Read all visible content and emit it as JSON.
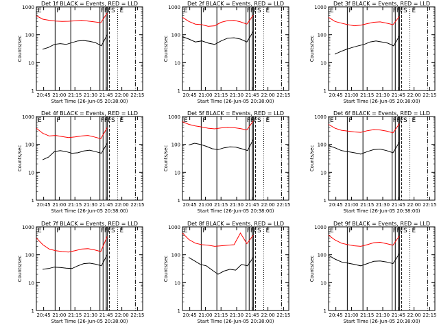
{
  "chart_data": {
    "type": "line",
    "layout": "3x3 grid",
    "colors": {
      "events": "#000000",
      "lld": "#ff0000",
      "frame": "#000000"
    },
    "shared": {
      "ylabel": "Counts/sec",
      "xlabel": "Start Time (26-Jun-05 20:38:00)",
      "yscale": "log",
      "ylim": [
        1,
        1000
      ],
      "yticks": [
        1,
        10,
        100,
        1000
      ],
      "xlim": [
        "20:38",
        "22:20"
      ],
      "xticks": [
        "20:45",
        "21:00",
        "21:15",
        "21:30",
        "21:45",
        "22:00",
        "22:15"
      ],
      "marker_labels": [
        "E",
        "F",
        "FFFS",
        "E"
      ],
      "marker_times": {
        "E_start": "20:38",
        "F_start": "20:56",
        "F_end": "21:11",
        "F2": "21:39",
        "F3": "21:42",
        "F4": "21:45",
        "S": "21:46",
        "dashed": "21:48",
        "dotted": "21:56",
        "E_end": "22:13"
      },
      "series_names": [
        "Events",
        "LLD"
      ]
    },
    "panels": [
      {
        "title": "Det 1f BLACK = Events, RED = LLD",
        "events": {
          "start": "20:44",
          "values": [
            30,
            35,
            45,
            48,
            45,
            52,
            60,
            62,
            58,
            52,
            40,
            100
          ]
        },
        "lld": {
          "start": "20:38",
          "values": [
            480,
            360,
            330,
            310,
            300,
            305,
            315,
            330,
            310,
            290,
            270,
            600
          ]
        }
      },
      {
        "title": "Det 2f BLACK = Events, RED = LLD",
        "events": {
          "start": "20:38",
          "values": [
            85,
            70,
            55,
            60,
            50,
            45,
            60,
            75,
            78,
            70,
            55,
            130
          ]
        },
        "lld": {
          "start": "20:38",
          "values": [
            420,
            300,
            240,
            230,
            200,
            210,
            280,
            320,
            330,
            290,
            240,
            500
          ]
        }
      },
      {
        "title": "Det 3f BLACK = Events, RED = LLD",
        "events": {
          "start": "20:44",
          "values": [
            20,
            25,
            30,
            35,
            40,
            45,
            55,
            60,
            55,
            50,
            40,
            90
          ]
        },
        "lld": {
          "start": "20:38",
          "values": [
            420,
            300,
            260,
            230,
            210,
            220,
            250,
            280,
            290,
            260,
            230,
            450
          ]
        }
      },
      {
        "title": "Det 4f BLACK = Events, RED = LLD",
        "events": {
          "start": "20:44",
          "values": [
            28,
            35,
            55,
            60,
            55,
            48,
            50,
            58,
            62,
            55,
            48,
            110
          ]
        },
        "lld": {
          "start": "20:38",
          "values": [
            380,
            250,
            200,
            210,
            190,
            175,
            185,
            200,
            210,
            185,
            160,
            400
          ]
        }
      },
      {
        "title": "Det 5f BLACK = Events, RED = LLD",
        "events": {
          "start": "20:44",
          "values": [
            95,
            110,
            100,
            85,
            70,
            65,
            75,
            82,
            80,
            70,
            60,
            150
          ]
        },
        "lld": {
          "start": "20:38",
          "values": [
            650,
            520,
            460,
            420,
            380,
            360,
            390,
            410,
            400,
            370,
            330,
            700
          ]
        }
      },
      {
        "title": "Det 6f BLACK = Events, RED = LLD",
        "events": {
          "start": "20:38",
          "values": [
            90,
            75,
            60,
            55,
            50,
            45,
            55,
            65,
            68,
            60,
            50,
            120
          ]
        },
        "lld": {
          "start": "20:38",
          "values": [
            520,
            380,
            320,
            300,
            280,
            270,
            310,
            340,
            330,
            300,
            260,
            550
          ]
        }
      },
      {
        "title": "Det 7f BLACK = Events, RED = LLD",
        "events": {
          "start": "20:44",
          "values": [
            30,
            32,
            36,
            35,
            33,
            32,
            40,
            48,
            50,
            46,
            40,
            100
          ]
        },
        "lld": {
          "start": "20:38",
          "values": [
            400,
            230,
            160,
            140,
            130,
            125,
            140,
            160,
            165,
            150,
            130,
            450
          ]
        }
      },
      {
        "title": "Det 8f BLACK = Events, RED = LLD",
        "events": {
          "start": "20:44",
          "values": [
            80,
            60,
            45,
            40,
            28,
            20,
            26,
            30,
            28,
            45,
            40,
            80
          ]
        },
        "lld": {
          "start": "20:38",
          "values": [
            600,
            350,
            260,
            230,
            220,
            200,
            210,
            220,
            230,
            600,
            250,
            500
          ]
        }
      },
      {
        "title": "Det 9f BLACK = Events, RED = LLD",
        "events": {
          "start": "20:38",
          "values": [
            95,
            70,
            55,
            50,
            45,
            40,
            48,
            58,
            60,
            55,
            48,
            110
          ]
        },
        "lld": {
          "start": "20:38",
          "values": [
            500,
            340,
            260,
            230,
            210,
            200,
            230,
            270,
            280,
            250,
            220,
            480
          ]
        }
      }
    ]
  }
}
